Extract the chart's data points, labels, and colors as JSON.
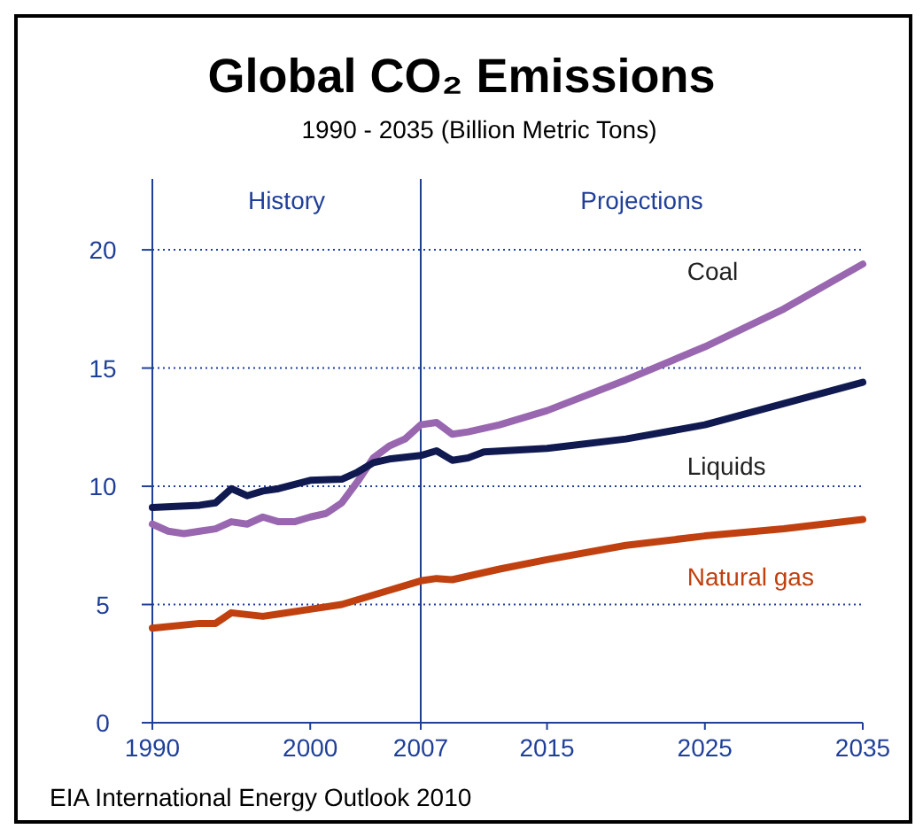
{
  "chart_data": {
    "type": "line",
    "title": "Global CO₂ Emissions",
    "subtitle": "1990 - 2035 (Billion Metric Tons)",
    "xlim": [
      1990,
      2035
    ],
    "xticks": [
      1990,
      2000,
      2007,
      2015,
      2025,
      2035
    ],
    "ylim": [
      0,
      23
    ],
    "yticks": [
      0,
      5,
      10,
      15,
      20
    ],
    "grid": "y",
    "marker": "none",
    "line_style": "solid",
    "ref_lines": [
      {
        "axis": "x",
        "value": 2007,
        "label": null,
        "color": "#1f3f8f"
      }
    ],
    "annotations": [
      "History",
      "Projections",
      "EIA International Energy Outlook 2010"
    ],
    "series": [
      {
        "name": "Coal",
        "color": "#9966b0",
        "x": [
          1990,
          1991,
          1992,
          1993,
          1994,
          1995,
          1996,
          1997,
          1998,
          1999,
          2000,
          2001,
          2002,
          2003,
          2004,
          2005,
          2006,
          2007,
          2008,
          2009,
          2010,
          2012,
          2015,
          2020,
          2025,
          2030,
          2035
        ],
        "values": [
          8.4,
          8.1,
          8.0,
          8.1,
          8.2,
          8.5,
          8.4,
          8.7,
          8.5,
          8.5,
          8.7,
          8.85,
          9.3,
          10.2,
          11.2,
          11.7,
          12.0,
          12.6,
          12.7,
          12.2,
          12.3,
          12.6,
          13.2,
          14.5,
          15.9,
          17.5,
          19.4
        ]
      },
      {
        "name": "Liquids",
        "color": "#101a50",
        "x": [
          1990,
          1993,
          1994,
          1995,
          1996,
          1997,
          1998,
          2000,
          2002,
          2003,
          2004,
          2005,
          2007,
          2008,
          2009,
          2010,
          2011,
          2015,
          2020,
          2025,
          2030,
          2035
        ],
        "values": [
          9.1,
          9.2,
          9.3,
          9.9,
          9.6,
          9.8,
          9.9,
          10.25,
          10.3,
          10.6,
          11.0,
          11.15,
          11.3,
          11.5,
          11.1,
          11.2,
          11.45,
          11.6,
          12.0,
          12.6,
          13.5,
          14.4
        ]
      },
      {
        "name": "Natural gas",
        "color": "#c0400f",
        "x": [
          1990,
          1993,
          1994,
          1995,
          1997,
          1998,
          2000,
          2002,
          2005,
          2007,
          2008,
          2009,
          2012,
          2015,
          2020,
          2025,
          2030,
          2035
        ],
        "values": [
          4.0,
          4.2,
          4.2,
          4.65,
          4.5,
          4.6,
          4.8,
          5.0,
          5.6,
          6.0,
          6.1,
          6.05,
          6.5,
          6.9,
          7.5,
          7.9,
          8.2,
          8.6
        ]
      }
    ]
  }
}
